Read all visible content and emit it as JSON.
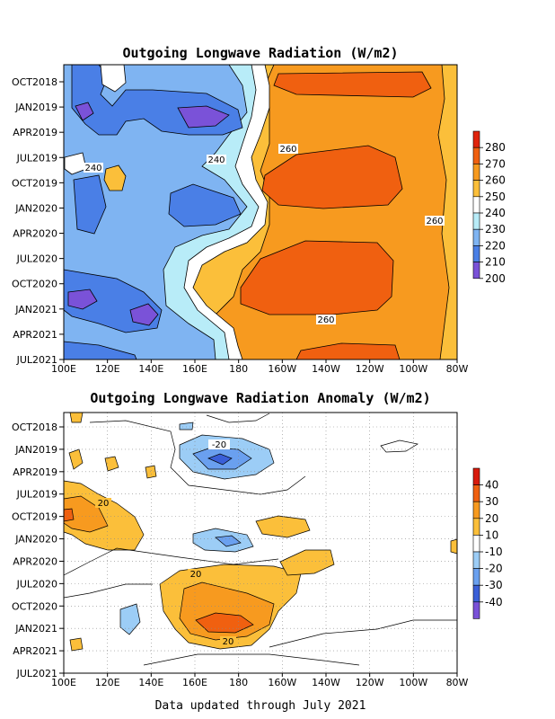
{
  "footer": "Data updated through July 2021",
  "chart_data": [
    {
      "type": "heatmap",
      "title": "Outgoing Longwave Radiation (W/m2)",
      "x_ticks": [
        "100E",
        "120E",
        "140E",
        "160E",
        "180",
        "160W",
        "140W",
        "120W",
        "100W",
        "80W"
      ],
      "y_ticks": [
        "OCT2018",
        "JAN2019",
        "APR2019",
        "JUL2019",
        "OCT2019",
        "JAN2020",
        "APR2020",
        "JUL2020",
        "OCT2020",
        "JAN2021",
        "APR2021",
        "JUL2021"
      ],
      "colorbar": {
        "levels": [
          "280",
          "270",
          "260",
          "250",
          "240",
          "230",
          "220",
          "210",
          "200"
        ],
        "colors": [
          "#e0240c",
          "#f06010",
          "#f79a1f",
          "#fbbf3a",
          "#ffffff",
          "#b8ecf8",
          "#7fb4f2",
          "#4a7fe6",
          "#7a52d8"
        ]
      },
      "contour_labels": [
        "240",
        "240",
        "260",
        "260",
        "260"
      ]
    },
    {
      "type": "heatmap",
      "title": "Outgoing Longwave Radiation Anomaly (W/m2)",
      "x_ticks": [
        "100E",
        "120E",
        "140E",
        "160E",
        "180",
        "160W",
        "140W",
        "120W",
        "100W",
        "80W"
      ],
      "y_ticks": [
        "OCT2018",
        "JAN2019",
        "APR2019",
        "JUL2019",
        "OCT2019",
        "JAN2020",
        "APR2020",
        "JUL2020",
        "OCT2020",
        "JAN2021",
        "APR2021",
        "JUL2021"
      ],
      "colorbar": {
        "levels": [
          "40",
          "30",
          "20",
          "10",
          "-10",
          "-20",
          "-30",
          "-40"
        ],
        "colors": [
          "#d81a0c",
          "#f06010",
          "#f79a1f",
          "#fbbf3a",
          "#ffffff",
          "#9ccdf6",
          "#6aa0ef",
          "#3a5fd8",
          "#7a52d8"
        ]
      },
      "contour_labels": [
        "-20",
        "20",
        "20",
        "20"
      ],
      "grid": true
    }
  ]
}
